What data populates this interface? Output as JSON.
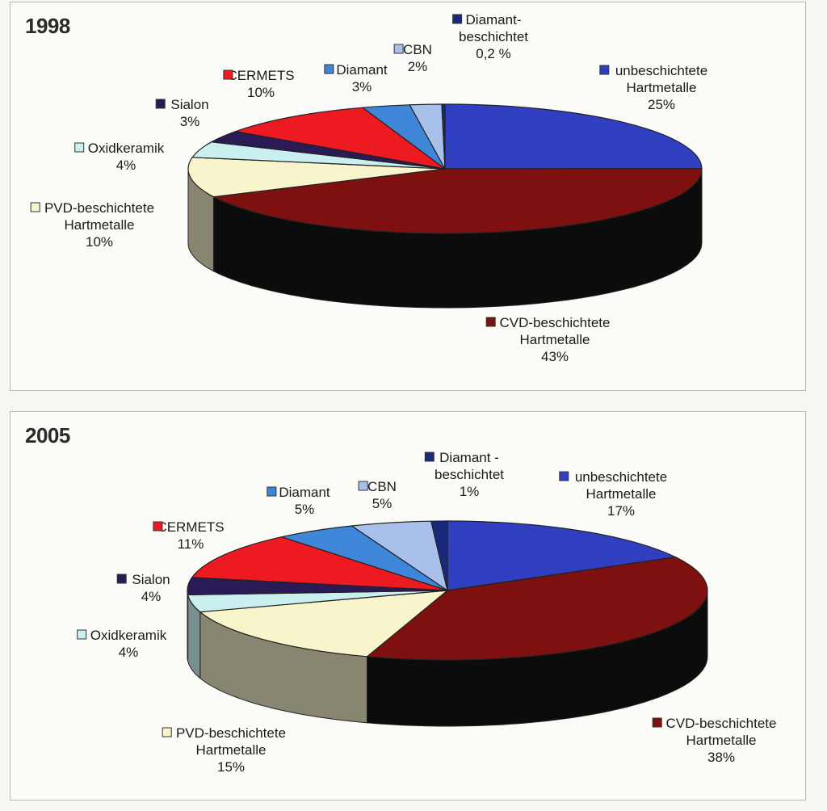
{
  "chart_data": [
    {
      "type": "pie",
      "title": "1998",
      "categories": [
        "unbeschichtete Hartmetalle",
        "CVD-beschichtete Hartmetalle",
        "PVD-beschichtete Hartmetalle",
        "Oxidkeramik",
        "Sialon",
        "CERMETS",
        "Diamant",
        "CBN",
        "Diamant-beschichtet"
      ],
      "values": [
        25,
        43,
        10,
        4,
        3,
        10,
        3,
        2,
        0.2
      ],
      "value_labels": [
        "25%",
        "43%",
        "10%",
        "4%",
        "3%",
        "10%",
        "3%",
        "2%",
        "0,2 %"
      ],
      "colors": [
        "#2f3fbf",
        "#7e1010",
        "#f8f4cc",
        "#c9efee",
        "#2a1a55",
        "#ee1a22",
        "#3f86d8",
        "#a8c0ea",
        "#1a2a7a"
      ],
      "label_lines": [
        [
          "unbeschichtete",
          "Hartmetalle"
        ],
        [
          "CVD-beschichtete",
          "Hartmetalle"
        ],
        [
          "PVD-beschichtete",
          "Hartmetalle"
        ],
        [
          "Oxidkeramik"
        ],
        [
          "Sialon"
        ],
        [
          "CERMETS"
        ],
        [
          "Diamant"
        ],
        [
          "CBN"
        ],
        [
          "Diamant-",
          "beschichtet"
        ]
      ],
      "legend_placement": "labels-around-pie",
      "style": "3d-pie"
    },
    {
      "type": "pie",
      "title": "2005",
      "categories": [
        "unbeschichtete Hartmetalle",
        "CVD-beschichtete Hartmetalle",
        "PVD-beschichtete Hartmetalle",
        "Oxidkeramik",
        "Sialon",
        "CERMETS",
        "Diamant",
        "CBN",
        "Diamant - beschichtet"
      ],
      "values": [
        17,
        38,
        15,
        4,
        4,
        11,
        5,
        5,
        1
      ],
      "value_labels": [
        "17%",
        "38%",
        "15%",
        "4%",
        "4%",
        "11%",
        "5%",
        "5%",
        "1%"
      ],
      "colors": [
        "#2f3fbf",
        "#7e1010",
        "#f8f4cc",
        "#c9efee",
        "#2a1a55",
        "#ee1a22",
        "#3f86d8",
        "#a8c0ea",
        "#1a2a7a"
      ],
      "label_lines": [
        [
          "unbeschichtete",
          "Hartmetalle"
        ],
        [
          "CVD-beschichtete",
          "Hartmetalle"
        ],
        [
          "PVD-beschichtete",
          "Hartmetalle"
        ],
        [
          "Oxidkeramik"
        ],
        [
          "Sialon"
        ],
        [
          "CERMETS"
        ],
        [
          "Diamant"
        ],
        [
          "CBN"
        ],
        [
          "Diamant -",
          "beschichtet"
        ]
      ],
      "legend_placement": "labels-around-pie",
      "style": "3d-pie"
    }
  ]
}
